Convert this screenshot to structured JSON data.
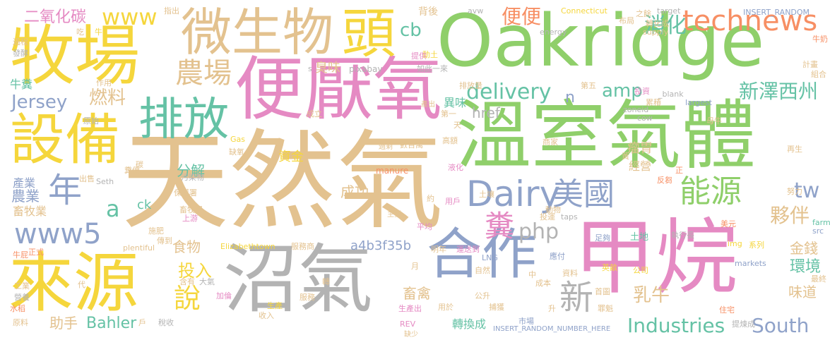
{
  "palette": {
    "tan": "#e3c28f",
    "green": "#8fcf6a",
    "pink": "#e58ac3",
    "blue": "#8fa2c9",
    "teal": "#65c2a5",
    "yellow": "#f5d63c",
    "orange": "#f78f64",
    "gray": "#b3b3b3"
  },
  "words": {
    "w1": {
      "text": "天然氣",
      "color": "#e3c28f"
    },
    "w2": {
      "text": "溫室氣體",
      "color": "#8fcf6a"
    },
    "w3": {
      "text": "Oakridge",
      "color": "#8fcf6a"
    },
    "w4": {
      "text": "甲烷",
      "color": "#e58ac3"
    },
    "w5": {
      "text": "沼氣",
      "color": "#b3b3b3"
    },
    "w6": {
      "text": "便厭氧",
      "color": "#e58ac3"
    },
    "w7": {
      "text": "牧場",
      "color": "#f5d63c"
    },
    "w8": {
      "text": "來源",
      "color": "#f5d63c"
    },
    "w9": {
      "text": "微生物",
      "color": "#e3c28f"
    },
    "w10": {
      "text": "設備",
      "color": "#f5d63c"
    },
    "w11": {
      "text": "頭",
      "color": "#f5d63c"
    },
    "w12": {
      "text": "合作",
      "color": "#8fa2c9"
    },
    "w13": {
      "text": "排放",
      "color": "#65c2a5"
    },
    "w14": {
      "text": "Dairy",
      "color": "#8fa2c9"
    },
    "w15": {
      "text": "technews",
      "color": "#f78f64"
    },
    "w16": {
      "text": "農場",
      "color": "#e3c28f"
    },
    "w17": {
      "text": "年",
      "color": "#8fa2c9"
    },
    "w18": {
      "text": "www5",
      "color": "#8fa2c9"
    },
    "w19": {
      "text": "美國",
      "color": "#8fa2c9"
    },
    "w20": {
      "text": "能源",
      "color": "#8fcf6a"
    },
    "w21": {
      "text": "糞",
      "color": "#e58ac3"
    },
    "w22": {
      "text": "說",
      "color": "#f5d63c"
    },
    "w23": {
      "text": "新",
      "color": "#b3b3b3"
    },
    "w24": {
      "text": "Industries",
      "color": "#65c2a5"
    },
    "w25": {
      "text": "South",
      "color": "#8fa2c9"
    },
    "w26": {
      "text": "delivery",
      "color": "#65c2a5"
    },
    "w27": {
      "text": "amp",
      "color": "#65c2a5"
    },
    "w28": {
      "text": "新澤西州",
      "color": "#65c2a5"
    },
    "w29": {
      "text": "便便",
      "color": "#f78f64"
    },
    "w30": {
      "text": "消化",
      "color": "#65c2a5"
    },
    "w31": {
      "text": "www",
      "color": "#f5d63c"
    },
    "w32": {
      "text": "二氧化碳",
      "color": "#e58ac3"
    },
    "w33": {
      "text": "cb",
      "color": "#65c2a5"
    },
    "w34": {
      "text": "Jersey",
      "color": "#8fa2c9"
    },
    "w35": {
      "text": "燃料",
      "color": "#e3c28f"
    },
    "w36": {
      "text": "a",
      "color": "#65c2a5"
    },
    "w37": {
      "text": "php",
      "color": "#b3b3b3"
    },
    "w38": {
      "text": "tw",
      "color": "#8fa2c9"
    },
    "w39": {
      "text": "夥伴",
      "color": "#e3c28f"
    },
    "w40": {
      "text": "環境",
      "color": "#65c2a5"
    },
    "w41": {
      "text": "乳牛",
      "color": "#e3c28f"
    },
    "w42": {
      "text": "投入",
      "color": "#f5d63c"
    },
    "w43": {
      "text": "Bahler",
      "color": "#65c2a5"
    },
    "w44": {
      "text": "a4b3f35b",
      "color": "#8fa2c9"
    },
    "w45": {
      "text": "href",
      "color": "#b3b3b3"
    },
    "w46": {
      "text": "分解",
      "color": "#65c2a5"
    },
    "w47": {
      "text": "食物",
      "color": "#e3c28f"
    },
    "w48": {
      "text": "金錢",
      "color": "#e3c28f"
    },
    "w49": {
      "text": "味道",
      "color": "#e3c28f"
    },
    "w50": {
      "text": "瘤胃",
      "color": "#e3c28f"
    },
    "w51": {
      "text": "經營",
      "color": "#e3c28f"
    },
    "w52": {
      "text": "農業",
      "color": "#8fa2c9"
    },
    "w53": {
      "text": "畜牧業",
      "color": "#e3c28f"
    },
    "w54": {
      "text": "產業",
      "color": "#8fa2c9"
    },
    "w55": {
      "text": "牛糞",
      "color": "#65c2a5"
    },
    "w56": {
      "text": "成功",
      "color": "#e3c28f"
    },
    "w57": {
      "text": "畜禽",
      "color": "#e3c28f"
    },
    "w58": {
      "text": "轉換成",
      "color": "#65c2a5"
    },
    "w59": {
      "text": "助手",
      "color": "#e3c28f"
    },
    "w60": {
      "text": "資金",
      "color": "#f5d63c"
    },
    "w61": {
      "text": "異味",
      "color": "#65c2a5"
    },
    "w62": {
      "text": "臭味",
      "color": "#e3c28f"
    },
    "w63": {
      "text": "ck",
      "color": "#65c2a5"
    },
    "w64": {
      "text": "n",
      "color": "#8fa2c9"
    },
    "w65": {
      "text": "背後",
      "color": "#e3c28f"
    },
    "w66": {
      "text": "pixabay",
      "color": "#b3b3b3"
    },
    "w67": {
      "text": "如此一來",
      "color": "#b3b3b3"
    },
    "w68": {
      "text": "動土",
      "color": "#f5d63c"
    },
    "w69": {
      "text": "第一",
      "color": "#e3c28f"
    },
    "w70": {
      "text": "應付",
      "color": "#8fa2c9"
    },
    "w71": {
      "text": "土地",
      "color": "#65c2a5"
    },
    "w72": {
      "text": "足夠",
      "color": "#8fa2c9"
    },
    "w73": {
      "text": "執行長",
      "color": "#b3b3b3"
    },
    "w74": {
      "text": "系列",
      "color": "#f5d63c"
    },
    "w75": {
      "text": "公司",
      "color": "#f5d63c"
    },
    "w76": {
      "text": "英畝",
      "color": "#f5d63c"
    },
    "w77": {
      "text": "markets",
      "color": "#8fa2c9"
    },
    "w78": {
      "text": "LNG",
      "color": "#8fa2c9"
    },
    "w79": {
      "text": "明年",
      "color": "#e3c28f"
    },
    "w80": {
      "text": "運送到",
      "color": "#e58ac3"
    },
    "w81": {
      "text": "自然",
      "color": "#e3c28f"
    },
    "w82": {
      "text": "INSERT_RANDOM_NUMBER_HERE",
      "color": "#8fa2c9"
    },
    "w83": {
      "text": "提煉成",
      "color": "#b3b3b3"
    },
    "w84": {
      "text": "Connecticut",
      "color": "#f5d63c"
    },
    "w85": {
      "text": "INSERT_RANDOM",
      "color": "#8fa2c9"
    },
    "w86": {
      "text": "target",
      "color": "#b3b3b3"
    },
    "w87": {
      "text": "energy",
      "color": "#b3b3b3"
    },
    "w88": {
      "text": "supply",
      "color": "#e3c28f"
    },
    "w89": {
      "text": "牛奶",
      "color": "#f78f64"
    },
    "w90": {
      "text": "avw",
      "color": "#b3b3b3"
    },
    "w91": {
      "text": "Elizabethtown",
      "color": "#f5d63c"
    },
    "w92": {
      "text": "plentiful",
      "color": "#e3c28f"
    },
    "w93": {
      "text": "manure",
      "color": "#f78f64"
    },
    "w94": {
      "text": "Seth",
      "color": "#b3b3b3"
    },
    "w95": {
      "text": "largest",
      "color": "#8fa2c9"
    },
    "w96": {
      "text": "zoneid",
      "color": "#b3b3b3"
    },
    "w97": {
      "text": "_blank",
      "color": "#b3b3b3"
    },
    "w98": {
      "text": "cow",
      "color": "#b3b3b3"
    },
    "w99": {
      "text": "taps",
      "color": "#b3b3b3"
    },
    "w100": {
      "text": "Gas",
      "color": "#f5d63c"
    },
    "w101": {
      "text": "REV",
      "color": "#e58ac3"
    },
    "w102": {
      "text": "img",
      "color": "#f5d63c"
    },
    "w103": {
      "text": "src",
      "color": "#8fa2c9"
    },
    "w104": {
      "text": "farm",
      "color": "#65c2a5"
    },
    "w105": {
      "text": "服務商",
      "color": "#e3c28f"
    },
    "w106": {
      "text": "保護署",
      "color": "#e3c28f"
    },
    "w107": {
      "text": "污染物",
      "color": "#b3b3b3"
    },
    "w108": {
      "text": "畜牧場",
      "color": "#e3c28f"
    },
    "w109": {
      "text": "上游",
      "color": "#e58ac3"
    },
    "w110": {
      "text": "施肥",
      "color": "#e3c28f"
    },
    "w111": {
      "text": "傳到",
      "color": "#e3c28f"
    },
    "w112": {
      "text": "正式",
      "color": "#f78f64"
    },
    "w113": {
      "text": "牛屁",
      "color": "#f78f64"
    },
    "w114": {
      "text": "工業",
      "color": "#e3c28f"
    },
    "w115": {
      "text": "水稻",
      "color": "#f78f64"
    },
    "w116": {
      "text": "原料",
      "color": "#e3c28f"
    },
    "w117": {
      "text": "營養",
      "color": "#b3b3b3"
    },
    "w118": {
      "text": "稅收",
      "color": "#b3b3b3"
    },
    "w119": {
      "text": "加倫",
      "color": "#e58ac3"
    },
    "w120": {
      "text": "大氣",
      "color": "#b3b3b3"
    },
    "w121": {
      "text": "含有",
      "color": "#e3c28f"
    },
    "w122": {
      "text": "服務",
      "color": "#e3c28f"
    },
    "w123": {
      "text": "收入",
      "color": "#e3c28f"
    },
    "w124": {
      "text": "生產",
      "color": "#f5d63c"
    },
    "w125": {
      "text": "生產出",
      "color": "#e58ac3"
    },
    "w126": {
      "text": "用於",
      "color": "#e3c28f"
    },
    "w127": {
      "text": "公升",
      "color": "#e3c28f"
    },
    "w128": {
      "text": "捕獲",
      "color": "#e3c28f"
    },
    "w129": {
      "text": "市場",
      "color": "#8fa2c9"
    },
    "w130": {
      "text": "平均",
      "color": "#e58ac3"
    },
    "w131": {
      "text": "用戶",
      "color": "#e58ac3"
    },
    "w132": {
      "text": "土壤",
      "color": "#e3c28f"
    },
    "w133": {
      "text": "約",
      "color": "#e3c28f"
    },
    "w134": {
      "text": "數百萬",
      "color": "#e3c28f"
    },
    "w135": {
      "text": "高額",
      "color": "#e3c28f"
    },
    "w136": {
      "text": "液化",
      "color": "#e58ac3"
    },
    "w137": {
      "text": "反芻",
      "color": "#f78f64"
    },
    "w138": {
      "text": "過程",
      "color": "#e3c28f"
    },
    "w139": {
      "text": "發酵",
      "color": "#b3b3b3"
    },
    "w140": {
      "text": "作用",
      "color": "#e3c28f"
    },
    "w141": {
      "text": "原始",
      "color": "#b3b3b3"
    },
    "w142": {
      "text": "缺氧",
      "color": "#e3c28f"
    },
    "w143": {
      "text": "出售",
      "color": "#e3c28f"
    },
    "w144": {
      "text": "糞便",
      "color": "#e3c28f"
    },
    "w145": {
      "text": "指出",
      "color": "#e3c28f"
    },
    "w146": {
      "text": "提供",
      "color": "#e58ac3"
    },
    "w147": {
      "text": "成立",
      "color": "#e3c28f"
    },
    "w148": {
      "text": "排放量",
      "color": "#e3c28f"
    },
    "w149": {
      "text": "第五",
      "color": "#e3c28f"
    },
    "w150": {
      "text": "投資",
      "color": "#e58ac3"
    },
    "w151": {
      "text": "累積",
      "color": "#e3c28f"
    },
    "w152": {
      "text": "母牛",
      "color": "#e3c28f"
    },
    "w153": {
      "text": "商家",
      "color": "#e3c28f"
    },
    "w154": {
      "text": "再生",
      "color": "#e3c28f"
    },
    "w155": {
      "text": "努力",
      "color": "#e3c28f"
    },
    "w156": {
      "text": "美元",
      "color": "#f78f64"
    },
    "w157": {
      "text": "資料",
      "color": "#e3c28f"
    },
    "w158": {
      "text": "首圖",
      "color": "#e3c28f"
    },
    "w159": {
      "text": "罪魁",
      "color": "#e3c28f"
    },
    "w160": {
      "text": "住宅",
      "color": "#f78f64"
    },
    "w161": {
      "text": "最終",
      "color": "#e3c28f"
    },
    "w162": {
      "text": "組合",
      "color": "#e3c28f"
    },
    "w163": {
      "text": "計畫",
      "color": "#e3c28f"
    },
    "w164": {
      "text": "轉化成",
      "color": "#e3c28f"
    },
    "w165": {
      "text": "之餘",
      "color": "#e3c28f"
    },
    "w166": {
      "text": "布局",
      "color": "#e3c28f"
    },
    "w167": {
      "text": "成本",
      "color": "#e3c28f"
    },
    "w168": {
      "text": "投運",
      "color": "#e3c28f"
    },
    "w169": {
      "text": "動物",
      "color": "#e3c28f"
    },
    "w170": {
      "text": "吃",
      "color": "#e3c28f"
    },
    "w171": {
      "text": "牛",
      "color": "#f5d63c"
    },
    "w172": {
      "text": "碳",
      "color": "#e3c28f"
    },
    "w173": {
      "text": "代",
      "color": "#e3c28f"
    },
    "w174": {
      "text": "轉",
      "color": "#e3c28f"
    },
    "w175": {
      "text": "月",
      "color": "#e3c28f"
    },
    "w176": {
      "text": "中",
      "color": "#e3c28f"
    },
    "w177": {
      "text": "升",
      "color": "#e3c28f"
    },
    "w178": {
      "text": "戶",
      "color": "#e3c28f"
    },
    "w179": {
      "text": "天",
      "color": "#e3c28f"
    },
    "w180": {
      "text": "正",
      "color": "#f78f64"
    },
    "w181": {
      "text": "黃",
      "color": "#e3c28f"
    },
    "w182": {
      "text": "s",
      "color": "#b3b3b3"
    },
    "w183": {
      "text": "缺少",
      "color": "#e3c28f"
    },
    "w184": {
      "text": "過剩",
      "color": "#e3c28f"
    },
    "w185": {
      "text": "產出",
      "color": "#e3c28f"
    },
    "w186": {
      "text": "主要",
      "color": "#e3c28f"
    }
  }
}
